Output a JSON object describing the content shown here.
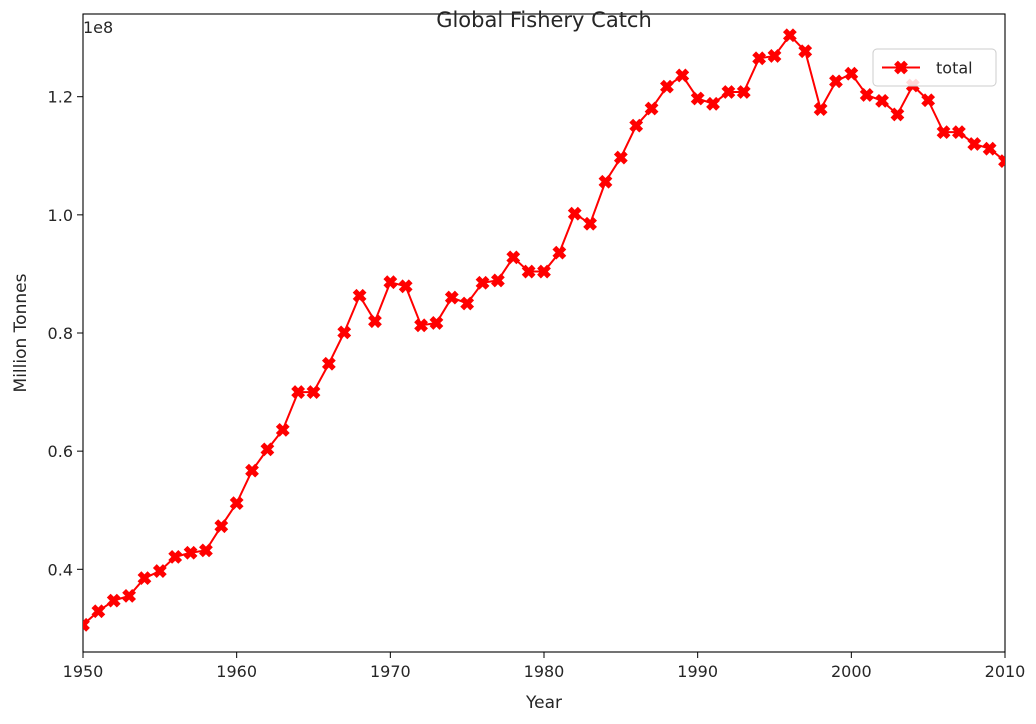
{
  "chart_data": {
    "type": "line",
    "title": "Global Fishery Catch",
    "xlabel": "Year",
    "ylabel": "Million Tonnes",
    "y_offset_label": "1e8",
    "xlim": [
      1950,
      2010
    ],
    "ylim": [
      26000000,
      134000000
    ],
    "x_ticks": [
      1950,
      1960,
      1970,
      1980,
      1990,
      2000,
      2010
    ],
    "x_tick_labels": [
      "1950",
      "1960",
      "1970",
      "1980",
      "1990",
      "2000",
      "2010"
    ],
    "y_ticks": [
      40000000,
      60000000,
      80000000,
      100000000,
      120000000
    ],
    "y_tick_labels": [
      "0.4",
      "0.6",
      "0.8",
      "1.0",
      "1.2"
    ],
    "grid": false,
    "legend_position": "top-right",
    "series": [
      {
        "name": "total",
        "color": "#ff0000",
        "marker": "X",
        "x": [
          1950,
          1951,
          1952,
          1953,
          1954,
          1955,
          1956,
          1957,
          1958,
          1959,
          1960,
          1961,
          1962,
          1963,
          1964,
          1965,
          1966,
          1967,
          1968,
          1969,
          1970,
          1971,
          1972,
          1973,
          1974,
          1975,
          1976,
          1977,
          1978,
          1979,
          1980,
          1981,
          1982,
          1983,
          1984,
          1985,
          1986,
          1987,
          1988,
          1989,
          1990,
          1991,
          1992,
          1993,
          1994,
          1995,
          1996,
          1997,
          1998,
          1999,
          2000,
          2001,
          2002,
          2003,
          2004,
          2005,
          2006,
          2007,
          2008,
          2009,
          2010
        ],
        "values": [
          30600000,
          32900000,
          34700000,
          35500000,
          38500000,
          39700000,
          42100000,
          42800000,
          43200000,
          47300000,
          51200000,
          56700000,
          60300000,
          63600000,
          70000000,
          70000000,
          74800000,
          80100000,
          86300000,
          82000000,
          88600000,
          87900000,
          81300000,
          81700000,
          86000000,
          85000000,
          88500000,
          88900000,
          92800000,
          90400000,
          90400000,
          93600000,
          100200000,
          98500000,
          105600000,
          109700000,
          115100000,
          118000000,
          121700000,
          123600000,
          119700000,
          118800000,
          120800000,
          120800000,
          126500000,
          126900000,
          130400000,
          127700000,
          117900000,
          122600000,
          123900000,
          120300000,
          119300000,
          117000000,
          121900000,
          119400000,
          114000000,
          114000000,
          112000000,
          111200000,
          109100000
        ]
      }
    ]
  }
}
